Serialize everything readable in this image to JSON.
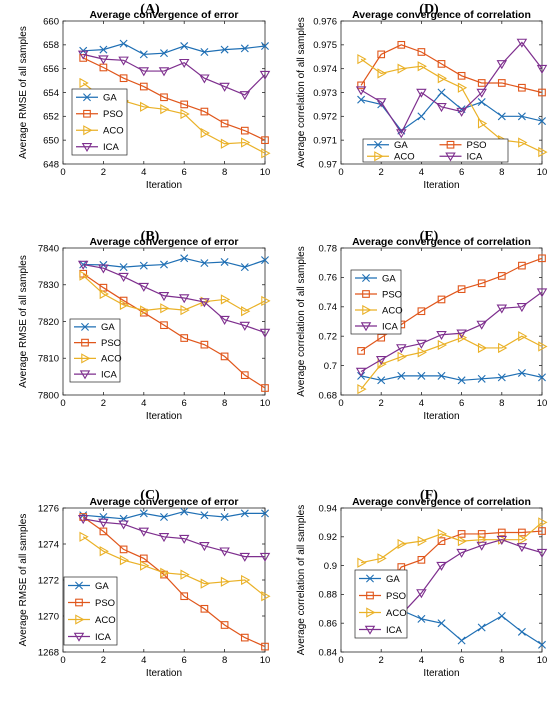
{
  "colors": {
    "GA": "#1f6fb4",
    "PSO": "#e0561b",
    "ACO": "#eab127",
    "ICA": "#7e2f8e"
  },
  "chart_data": [
    {
      "id": "A",
      "panel_label": "(A)",
      "type": "line",
      "title": "Average convergence of error",
      "xlabel": "Iteration",
      "ylabel": "Average RMSE of all samples",
      "xlim": [
        0,
        10
      ],
      "ylim": [
        648,
        660
      ],
      "xticks": [
        0,
        2,
        4,
        6,
        8,
        10
      ],
      "yticks": [
        648,
        650,
        652,
        654,
        656,
        658,
        660
      ],
      "x": [
        1,
        2,
        3,
        4,
        5,
        6,
        7,
        8,
        9,
        10
      ],
      "legend": "bottom-left",
      "legend_cols": 1,
      "grid": false,
      "series": [
        {
          "name": "GA",
          "marker": "x",
          "values": [
            657.5,
            657.6,
            658.1,
            657.2,
            657.3,
            657.9,
            657.4,
            657.6,
            657.7,
            657.9
          ]
        },
        {
          "name": "PSO",
          "marker": "square",
          "values": [
            656.9,
            656.1,
            655.2,
            654.5,
            653.6,
            653.0,
            652.4,
            651.4,
            650.8,
            650.0
          ]
        },
        {
          "name": "ACO",
          "marker": "triangle-right",
          "values": [
            654.8,
            653.5,
            653.3,
            652.8,
            652.6,
            652.2,
            650.6,
            649.7,
            649.8,
            648.9
          ]
        },
        {
          "name": "ICA",
          "marker": "triangle-down",
          "values": [
            657.2,
            656.8,
            656.7,
            655.8,
            655.8,
            656.5,
            655.2,
            654.5,
            653.8,
            655.5
          ]
        }
      ]
    },
    {
      "id": "D",
      "panel_label": "(D)",
      "type": "line",
      "title": "Average convergence of correlation",
      "xlabel": "Iteration",
      "ylabel": "Average correlation of all samples",
      "xlim": [
        0,
        10
      ],
      "ylim": [
        0.97,
        0.976
      ],
      "xticks": [
        0,
        2,
        4,
        6,
        8,
        10
      ],
      "yticks": [
        0.97,
        0.971,
        0.972,
        0.973,
        0.974,
        0.975,
        0.976
      ],
      "ytick_labels": [
        "0.97",
        "0.971",
        "0.972",
        "0.973",
        "0.974",
        "0.975",
        "0.976"
      ],
      "x": [
        1,
        2,
        3,
        4,
        5,
        6,
        7,
        8,
        9,
        10
      ],
      "legend": "bottom",
      "legend_cols": 2,
      "grid": false,
      "series": [
        {
          "name": "GA",
          "marker": "x",
          "values": [
            0.9727,
            0.9725,
            0.9714,
            0.972,
            0.973,
            0.9723,
            0.9726,
            0.972,
            0.972,
            0.9718
          ]
        },
        {
          "name": "PSO",
          "marker": "square",
          "values": [
            0.9733,
            0.9746,
            0.975,
            0.9747,
            0.9742,
            0.9737,
            0.9734,
            0.9734,
            0.9732,
            0.973
          ]
        },
        {
          "name": "ACO",
          "marker": "triangle-right",
          "values": [
            0.9744,
            0.9738,
            0.974,
            0.9741,
            0.9736,
            0.9732,
            0.9717,
            0.971,
            0.9709,
            0.9705
          ]
        },
        {
          "name": "ICA",
          "marker": "triangle-down",
          "values": [
            0.9731,
            0.9726,
            0.9713,
            0.973,
            0.9724,
            0.9722,
            0.973,
            0.9742,
            0.9751,
            0.974
          ]
        }
      ]
    },
    {
      "id": "B",
      "panel_label": "(B)",
      "type": "line",
      "title": "Average convergence of error",
      "xlabel": "Iteration",
      "ylabel": "Average RMSE of all samples",
      "xlim": [
        0,
        10
      ],
      "ylim": [
        7800,
        7840
      ],
      "xticks": [
        0,
        2,
        4,
        6,
        8,
        10
      ],
      "yticks": [
        7800,
        7810,
        7820,
        7830,
        7840
      ],
      "x": [
        1,
        2,
        3,
        4,
        5,
        6,
        7,
        8,
        9,
        10
      ],
      "legend": "bottom-left",
      "legend_cols": 1,
      "grid": false,
      "series": [
        {
          "name": "GA",
          "marker": "x",
          "values": [
            7835.5,
            7835.4,
            7834.8,
            7835.2,
            7835.5,
            7837.2,
            7835.9,
            7836.2,
            7834.8,
            7836.7
          ]
        },
        {
          "name": "PSO",
          "marker": "square",
          "values": [
            7833.0,
            7829.2,
            7825.7,
            7822.4,
            7819.0,
            7815.5,
            7813.7,
            7810.5,
            7805.4,
            7801.9
          ]
        },
        {
          "name": "ACO",
          "marker": "triangle-right",
          "values": [
            7832.5,
            7827.5,
            7824.5,
            7823.0,
            7823.6,
            7823.1,
            7825.4,
            7826.0,
            7822.8,
            7825.6
          ]
        },
        {
          "name": "ICA",
          "marker": "triangle-down",
          "values": [
            7835.5,
            7834.5,
            7832.2,
            7829.5,
            7827.0,
            7826.4,
            7825.3,
            7820.5,
            7818.9,
            7817.0
          ]
        }
      ]
    },
    {
      "id": "E",
      "panel_label": "(E)",
      "type": "line",
      "title": "Average convergence of correlation",
      "xlabel": "Iteration",
      "ylabel": "Average correlation of all samples",
      "xlim": [
        0,
        10
      ],
      "ylim": [
        0.68,
        0.78
      ],
      "xticks": [
        0,
        2,
        4,
        6,
        8,
        10
      ],
      "yticks": [
        0.68,
        0.7,
        0.72,
        0.74,
        0.76,
        0.78
      ],
      "ytick_labels": [
        "0.68",
        "0.7",
        "0.72",
        "0.74",
        "0.76",
        "0.78"
      ],
      "x": [
        1,
        2,
        3,
        4,
        5,
        6,
        7,
        8,
        9,
        10
      ],
      "legend": "top-left",
      "legend_cols": 1,
      "grid": false,
      "series": [
        {
          "name": "GA",
          "marker": "x",
          "values": [
            0.693,
            0.69,
            0.693,
            0.693,
            0.693,
            0.69,
            0.691,
            0.692,
            0.695,
            0.692
          ]
        },
        {
          "name": "PSO",
          "marker": "square",
          "values": [
            0.71,
            0.719,
            0.728,
            0.737,
            0.745,
            0.752,
            0.756,
            0.761,
            0.768,
            0.773
          ]
        },
        {
          "name": "ACO",
          "marker": "triangle-right",
          "values": [
            0.684,
            0.701,
            0.706,
            0.709,
            0.714,
            0.719,
            0.712,
            0.712,
            0.72,
            0.713
          ]
        },
        {
          "name": "ICA",
          "marker": "triangle-down",
          "values": [
            0.696,
            0.704,
            0.712,
            0.715,
            0.721,
            0.722,
            0.728,
            0.739,
            0.74,
            0.75
          ]
        }
      ]
    },
    {
      "id": "C",
      "panel_label": "(C)",
      "type": "line",
      "title": "Average convergence of error",
      "xlabel": "Iteration",
      "ylabel": "Average RMSE of all samples",
      "xlim": [
        0,
        10
      ],
      "ylim": [
        1268,
        1276
      ],
      "xticks": [
        0,
        2,
        4,
        6,
        8,
        10
      ],
      "yticks": [
        1268,
        1270,
        1272,
        1274,
        1276
      ],
      "x": [
        1,
        2,
        3,
        4,
        5,
        6,
        7,
        8,
        9,
        10
      ],
      "legend": "bottom-left",
      "legend_cols": 1,
      "grid": false,
      "series": [
        {
          "name": "GA",
          "marker": "x",
          "values": [
            1275.6,
            1275.5,
            1275.4,
            1275.7,
            1275.5,
            1275.8,
            1275.6,
            1275.5,
            1275.7,
            1275.7
          ]
        },
        {
          "name": "PSO",
          "marker": "square",
          "values": [
            1275.5,
            1274.7,
            1273.7,
            1273.2,
            1272.3,
            1271.1,
            1270.4,
            1269.5,
            1268.8,
            1268.3
          ]
        },
        {
          "name": "ACO",
          "marker": "triangle-right",
          "values": [
            1274.4,
            1273.6,
            1273.1,
            1272.8,
            1272.4,
            1272.3,
            1271.8,
            1271.9,
            1272.0,
            1271.1
          ]
        },
        {
          "name": "ICA",
          "marker": "triangle-down",
          "values": [
            1275.4,
            1275.2,
            1275.1,
            1274.7,
            1274.4,
            1274.3,
            1273.9,
            1273.6,
            1273.3,
            1273.3
          ]
        }
      ]
    },
    {
      "id": "F",
      "panel_label": "(F)",
      "type": "line",
      "title": "Average convergence of correlation",
      "xlabel": "Iteration",
      "ylabel": "Average correlation of all samples",
      "xlim": [
        0,
        10
      ],
      "ylim": [
        0.84,
        0.94
      ],
      "xticks": [
        0,
        2,
        4,
        6,
        8,
        10
      ],
      "yticks": [
        0.84,
        0.86,
        0.88,
        0.9,
        0.92,
        0.94
      ],
      "ytick_labels": [
        "0.84",
        "0.86",
        "0.88",
        "0.9",
        "0.92",
        "0.94"
      ],
      "x": [
        1,
        2,
        3,
        4,
        5,
        6,
        7,
        8,
        9,
        10
      ],
      "legend": "bottom-left",
      "legend_cols": 1,
      "grid": false,
      "series": [
        {
          "name": "GA",
          "marker": "x",
          "values": [
            0.864,
            0.862,
            0.869,
            0.863,
            0.86,
            0.848,
            0.857,
            0.865,
            0.854,
            0.845
          ]
        },
        {
          "name": "PSO",
          "marker": "square",
          "values": [
            0.864,
            0.877,
            0.899,
            0.904,
            0.917,
            0.922,
            0.922,
            0.923,
            0.923,
            0.924
          ]
        },
        {
          "name": "ACO",
          "marker": "triangle-right",
          "values": [
            0.902,
            0.905,
            0.915,
            0.917,
            0.922,
            0.917,
            0.918,
            0.918,
            0.918,
            0.93
          ]
        },
        {
          "name": "ICA",
          "marker": "triangle-down",
          "values": [
            0.857,
            0.892,
            0.866,
            0.881,
            0.9,
            0.909,
            0.914,
            0.918,
            0.913,
            0.909
          ]
        }
      ]
    }
  ]
}
